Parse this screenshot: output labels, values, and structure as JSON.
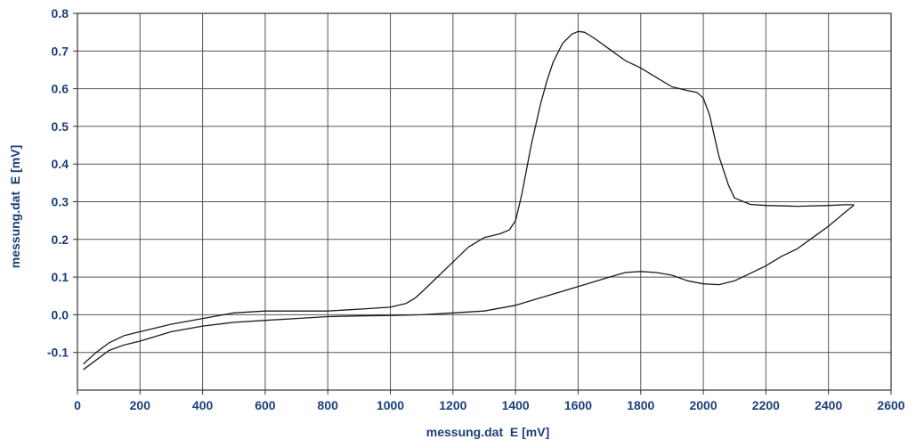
{
  "chart_data": {
    "type": "line",
    "title": "",
    "xlabel": "messung.dat  E [mV]",
    "ylabel": "messung.dat  E [mV]",
    "xlim": [
      0,
      2600
    ],
    "ylim": [
      -0.2,
      0.8
    ],
    "x_ticks": [
      0,
      200,
      400,
      600,
      800,
      1000,
      1200,
      1400,
      1600,
      1800,
      2000,
      2200,
      2400,
      2600
    ],
    "y_ticks": [
      -0.1,
      0.0,
      0.1,
      0.2,
      0.3,
      0.4,
      0.5,
      0.6,
      0.7,
      0.8
    ],
    "x_tick_labels": [
      "0",
      "200",
      "400",
      "600",
      "800",
      "1000",
      "1200",
      "1400",
      "1600",
      "1800",
      "2000",
      "2200",
      "2400",
      "2600"
    ],
    "y_tick_labels": [
      "-0.1",
      "0.0",
      "0.1",
      "0.2",
      "0.3",
      "0.4",
      "0.5",
      "0.6",
      "0.7",
      "0.8"
    ],
    "grid": true,
    "legend": "none",
    "colors": {
      "line": "#1a1a1a",
      "grid": "#555555",
      "axis": "#333333",
      "text": "#1c3f7a"
    },
    "series": [
      {
        "x": [
          20,
          60,
          100,
          150,
          200,
          250,
          300,
          400,
          500,
          600,
          700,
          800,
          900,
          1000,
          1050,
          1080,
          1100,
          1150,
          1200,
          1250,
          1300,
          1350,
          1380,
          1400,
          1420,
          1450,
          1480,
          1500,
          1520,
          1550,
          1580,
          1600,
          1620,
          1650,
          1700,
          1750,
          1800,
          1850,
          1900,
          1950,
          1980,
          2000,
          2020,
          2050,
          2080,
          2100,
          2150,
          2200,
          2300,
          2400,
          2450,
          2480
        ],
        "y": [
          -0.13,
          -0.1,
          -0.075,
          -0.055,
          -0.045,
          -0.035,
          -0.025,
          -0.01,
          0.005,
          0.01,
          0.01,
          0.01,
          0.015,
          0.02,
          0.03,
          0.045,
          0.06,
          0.1,
          0.14,
          0.18,
          0.205,
          0.215,
          0.225,
          0.25,
          0.32,
          0.45,
          0.56,
          0.62,
          0.67,
          0.72,
          0.745,
          0.752,
          0.75,
          0.735,
          0.705,
          0.675,
          0.655,
          0.63,
          0.605,
          0.595,
          0.59,
          0.575,
          0.53,
          0.42,
          0.345,
          0.31,
          0.293,
          0.29,
          0.288,
          0.29,
          0.292,
          0.292
        ]
      },
      {
        "x": [
          2480,
          2450,
          2400,
          2350,
          2300,
          2250,
          2200,
          2150,
          2100,
          2050,
          2000,
          1950,
          1900,
          1850,
          1800,
          1750,
          1700,
          1600,
          1500,
          1400,
          1300,
          1200,
          1100,
          1000,
          900,
          800,
          700,
          600,
          500,
          400,
          300,
          200,
          150,
          100,
          60,
          20
        ],
        "y": [
          0.29,
          0.27,
          0.235,
          0.205,
          0.175,
          0.155,
          0.13,
          0.11,
          0.09,
          0.08,
          0.082,
          0.09,
          0.105,
          0.112,
          0.115,
          0.112,
          0.1,
          0.075,
          0.05,
          0.025,
          0.01,
          0.005,
          0.0,
          -0.002,
          -0.003,
          -0.005,
          -0.01,
          -0.015,
          -0.02,
          -0.03,
          -0.045,
          -0.07,
          -0.08,
          -0.095,
          -0.12,
          -0.145
        ]
      }
    ]
  }
}
